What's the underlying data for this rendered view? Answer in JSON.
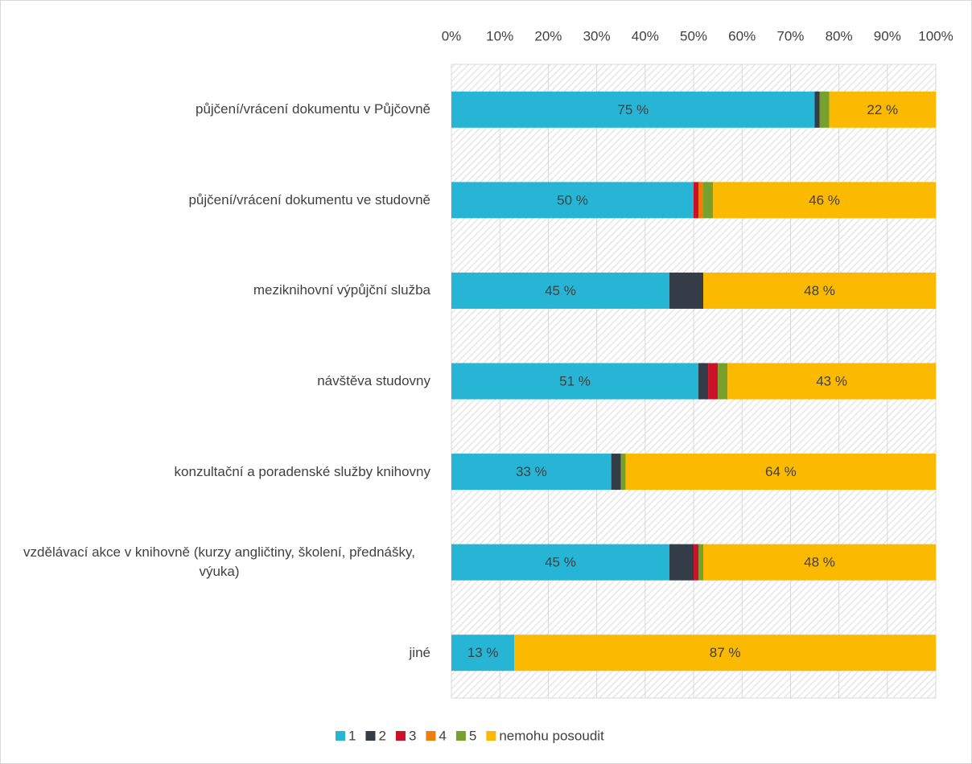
{
  "chart_data": {
    "type": "stacked-bar-horizontal",
    "categories": [
      "půjčení/vrácení dokumentu v Půjčovně",
      "půjčení/vrácení dokumentu ve studovně",
      "meziknihovní výpůjční služba",
      "návštěva studovny",
      "konzultační a poradenské služby knihovny",
      "vzdělávací akce v knihovně (kurzy angličtiny, školení, přednášky, výuka)",
      "jiné"
    ],
    "series": [
      {
        "name": "1",
        "color": "#27b5d6",
        "values": [
          75,
          50,
          45,
          51,
          33,
          45,
          13
        ],
        "value_labels": [
          "75 %",
          "50 %",
          "45 %",
          "51 %",
          "33 %",
          "45 %",
          "13 %"
        ]
      },
      {
        "name": "2",
        "color": "#333c47",
        "values": [
          1,
          0,
          7,
          2,
          2,
          5,
          0
        ]
      },
      {
        "name": "3",
        "color": "#cc1228",
        "values": [
          0,
          1,
          0,
          2,
          0,
          1,
          0
        ]
      },
      {
        "name": "4",
        "color": "#ee7d0b",
        "values": [
          0,
          1,
          0,
          0,
          0,
          0,
          0
        ]
      },
      {
        "name": "5",
        "color": "#78a02c",
        "values": [
          2,
          2,
          0,
          2,
          1,
          1,
          0
        ]
      },
      {
        "name": "nemohu posoudit",
        "color": "#fbb900",
        "values": [
          22,
          46,
          48,
          43,
          64,
          48,
          87
        ],
        "value_labels": [
          "22 %",
          "46 %",
          "48 %",
          "43 %",
          "64 %",
          "48 %",
          "87 %"
        ]
      }
    ],
    "xlim": [
      0,
      100
    ],
    "xticks": [
      {
        "value": 0,
        "label": "0%"
      },
      {
        "value": 10,
        "label": "10%"
      },
      {
        "value": 20,
        "label": "20%"
      },
      {
        "value": 30,
        "label": "30%"
      },
      {
        "value": 40,
        "label": "40%"
      },
      {
        "value": 50,
        "label": "50%"
      },
      {
        "value": 60,
        "label": "60%"
      },
      {
        "value": 70,
        "label": "70%"
      },
      {
        "value": 80,
        "label": "80%"
      },
      {
        "value": 90,
        "label": "90%"
      },
      {
        "value": 100,
        "label": "100%"
      }
    ],
    "grid": true,
    "legend": "bottom"
  }
}
